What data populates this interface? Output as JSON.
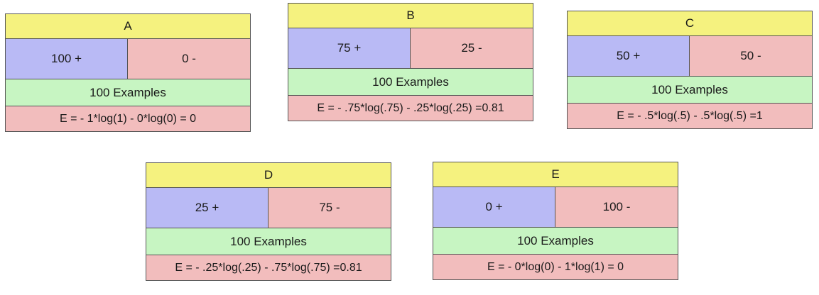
{
  "boxes": [
    {
      "title": "A",
      "positive": "100 +",
      "negative": "0 -",
      "examples": "100 Examples",
      "entropy": "E = - 1*log(1) - 0*log(0) = 0"
    },
    {
      "title": "B",
      "positive": "75 +",
      "negative": "25 -",
      "examples": "100 Examples",
      "entropy": "E = - .75*log(.75) - .25*log(.25) =0.81"
    },
    {
      "title": "C",
      "positive": "50 +",
      "negative": "50 -",
      "examples": "100 Examples",
      "entropy": "E = - .5*log(.5) - .5*log(.5) =1"
    },
    {
      "title": "D",
      "positive": "25 +",
      "negative": "75 -",
      "examples": "100 Examples",
      "entropy": "E = - .25*log(.25) - .75*log(.75) =0.81"
    },
    {
      "title": "E",
      "positive": "0 +",
      "negative": "100 -",
      "examples": "100 Examples",
      "entropy": "E = - 0*log(0) - 1*log(1) = 0"
    }
  ],
  "colors": {
    "title": "#f5f27f",
    "positive": "#b9baf5",
    "negative": "#f2bdbd",
    "examples": "#c7f5c2",
    "entropy": "#f2bdbd",
    "border": "#555555"
  }
}
